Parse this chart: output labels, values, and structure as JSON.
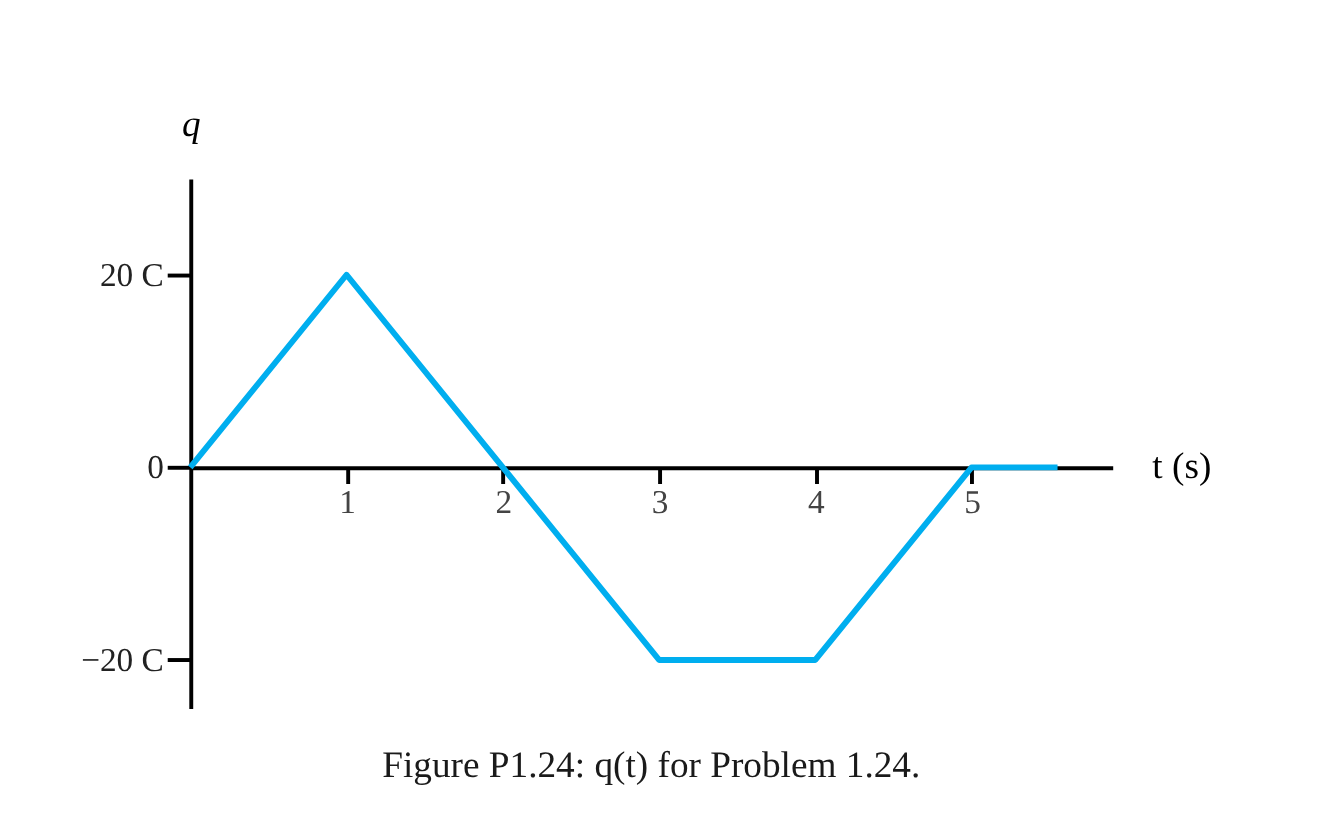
{
  "chart_data": {
    "type": "line",
    "title": "Figure P1.24: q(t) for Problem 1.24.",
    "xlabel": "t (s)",
    "ylabel": "q",
    "x": [
      0,
      1,
      2,
      3,
      4,
      5,
      5.55
    ],
    "series": [
      {
        "color": "#00aeef",
        "values": [
          0,
          20,
          0,
          -20,
          -20,
          0,
          0
        ]
      }
    ],
    "xlim": [
      0,
      5.9
    ],
    "ylim": [
      -25,
      30
    ],
    "xticks": [
      1,
      2,
      3,
      4,
      5
    ],
    "yticks": [
      {
        "value": -20,
        "label": "−20 C"
      },
      0,
      {
        "value": 20,
        "label": "20 C"
      }
    ],
    "grid": false,
    "marker": "none",
    "line_style": "solid"
  }
}
